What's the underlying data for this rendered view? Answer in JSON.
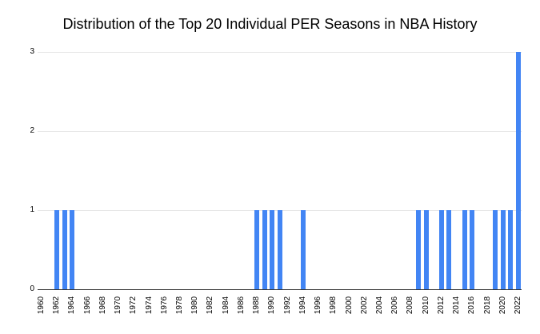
{
  "chart_data": {
    "type": "bar",
    "title": "Distribution of the Top 20 Individual PER Seasons in NBA History",
    "xlabel": "",
    "ylabel": "",
    "x": [
      1962,
      1963,
      1964,
      1988,
      1989,
      1990,
      1991,
      1994,
      2009,
      2010,
      2012,
      2013,
      2015,
      2016,
      2019,
      2020,
      2021,
      2022
    ],
    "values": [
      1,
      1,
      1,
      1,
      1,
      1,
      1,
      1,
      1,
      1,
      1,
      1,
      1,
      1,
      1,
      1,
      1,
      3
    ],
    "total_seasons": 20,
    "x_tick_start": 1960,
    "x_tick_step": 2,
    "x_tick_labels": [
      "1960",
      "1962",
      "1964",
      "1966",
      "1968",
      "1970",
      "1972",
      "1974",
      "1976",
      "1978",
      "1980",
      "1982",
      "1984",
      "1986",
      "1988",
      "1990",
      "1992",
      "1994",
      "1996",
      "1998",
      "2000",
      "2002",
      "2004",
      "2006",
      "2008",
      "2010",
      "2012",
      "2014",
      "2016",
      "2018",
      "2020",
      "2022"
    ],
    "y_tick_labels": [
      "0",
      "1",
      "2",
      "3"
    ],
    "ylim": [
      0,
      3
    ],
    "grid": "horizontal",
    "legend_position": "none",
    "colors": {
      "bar": "#4285f4",
      "gridline": "#e6e6e6",
      "axis_line": "#333333",
      "tick_text": "#000000",
      "title_text": "#000000",
      "background": "#ffffff"
    }
  }
}
